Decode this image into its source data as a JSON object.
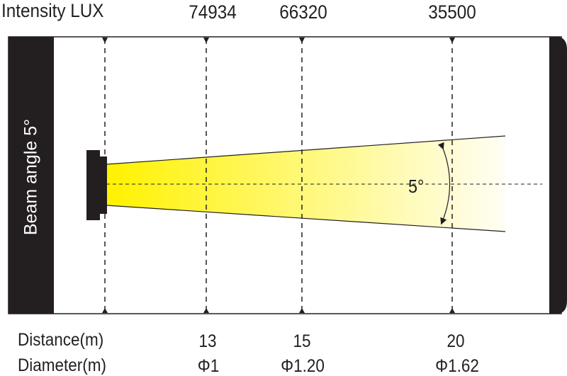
{
  "intensity": {
    "label": "Intensity LUX",
    "values": [
      "74934",
      "66320",
      "35500"
    ]
  },
  "beam_angle_label": "Beam angle 5°",
  "angle_annotation": "5°",
  "distance": {
    "label": "Distance(m)",
    "values": [
      "13",
      "15",
      "20"
    ]
  },
  "diameter": {
    "label": "Diameter(m)",
    "values": [
      "Φ1",
      "Φ1.20",
      "Φ1.62"
    ]
  },
  "colors": {
    "beam_start": "#fff200",
    "beam_end": "#fffef0",
    "frame": "#231f20"
  }
}
